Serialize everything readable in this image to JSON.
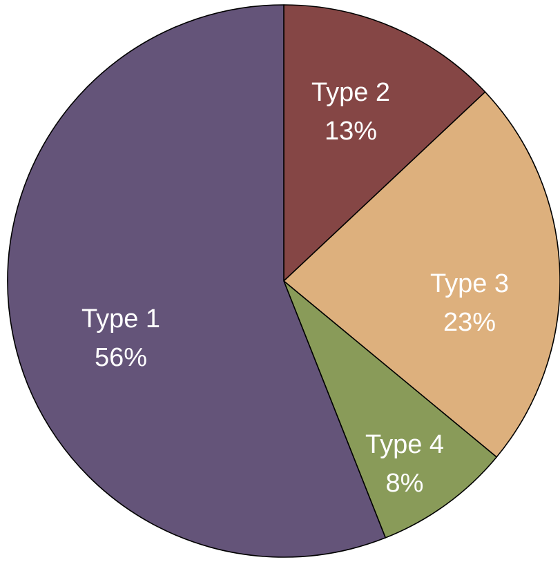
{
  "chart_data": {
    "type": "pie",
    "categories": [
      "Type 1",
      "Type 2",
      "Type 3",
      "Type 4"
    ],
    "values": [
      56,
      13,
      23,
      8
    ],
    "value_labels": [
      "56%",
      "13%",
      "23%",
      "8%"
    ],
    "colors": [
      "#645479",
      "#854645",
      "#ddb07d",
      "#899b59"
    ],
    "start": "12 o'clock",
    "direction": "clockwise",
    "order": [
      "Type 2",
      "Type 3",
      "Type 4",
      "Type 1"
    ],
    "legend": "none",
    "title": "",
    "label_color": "#ffffff"
  }
}
